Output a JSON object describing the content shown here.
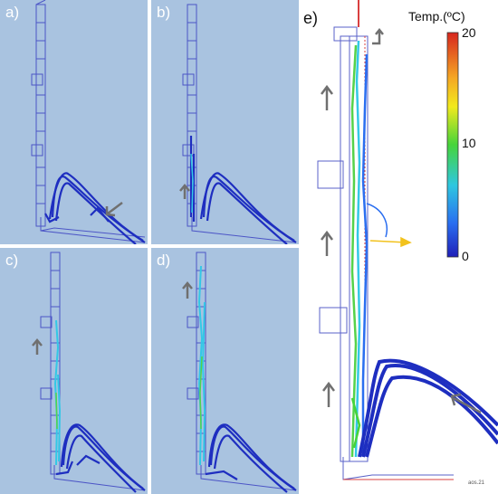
{
  "panels": {
    "a": {
      "label": "a)"
    },
    "b": {
      "label": "b)"
    },
    "c": {
      "label": "c)"
    },
    "d": {
      "label": "d)"
    },
    "e": {
      "label": "e)"
    }
  },
  "colorbar": {
    "title": "Temp.(ºC)",
    "ticks": [
      "20",
      "10",
      "0"
    ],
    "colors": [
      "#d7261e",
      "#f5a623",
      "#f2ea1d",
      "#46d43a",
      "#2ec7e0",
      "#2a6ef0",
      "#1f1fb8"
    ]
  },
  "watermark": "aos.21",
  "colors": {
    "panel_bg": "#a9c3e0",
    "stream_dark": "#1e2ec0",
    "stream_cyan": "#33c8e6",
    "stream_green": "#55d24a",
    "frame": "#5a62c8",
    "arrow": "#707070"
  }
}
